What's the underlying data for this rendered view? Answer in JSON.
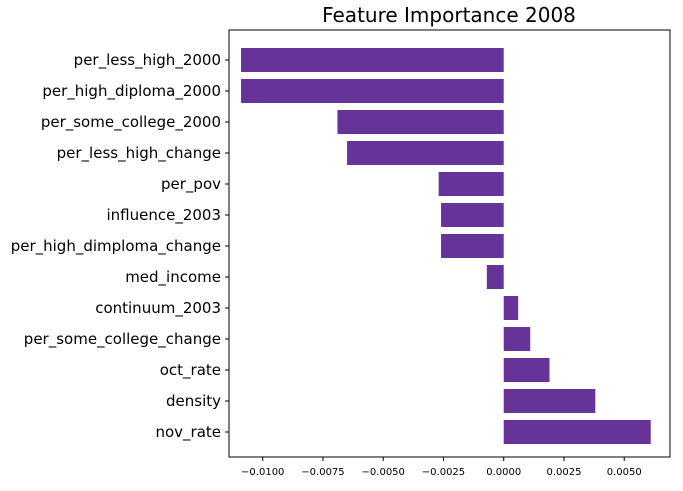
{
  "chart_data": {
    "type": "bar",
    "orientation": "horizontal",
    "title": "Feature Importance 2008",
    "xlabel": "",
    "ylabel": "",
    "categories": [
      "per_less_high_2000",
      "per_high_diploma_2000",
      "per_some_college_2000",
      "per_less_high_change",
      "per_pov",
      "influence_2003",
      "per_high_dimploma_change",
      "med_income",
      "continuum_2003",
      "per_some_college_change",
      "oct_rate",
      "density",
      "nov_rate"
    ],
    "values": [
      -0.0109,
      -0.0109,
      -0.0069,
      -0.0065,
      -0.0027,
      -0.0026,
      -0.0026,
      -0.0007,
      0.0006,
      0.0011,
      0.0019,
      0.0038,
      0.0061
    ],
    "xlim": [
      -0.0114,
      0.0069
    ],
    "xticks": [
      -0.01,
      -0.0075,
      -0.005,
      -0.0025,
      0.0,
      0.0025,
      0.005
    ],
    "xtick_labels": [
      "−0.0100",
      "−0.0075",
      "−0.0050",
      "−0.0025",
      "0.0000",
      "0.0025",
      "0.0050"
    ],
    "bar_color": "#663399",
    "grid": false,
    "legend": "none"
  }
}
